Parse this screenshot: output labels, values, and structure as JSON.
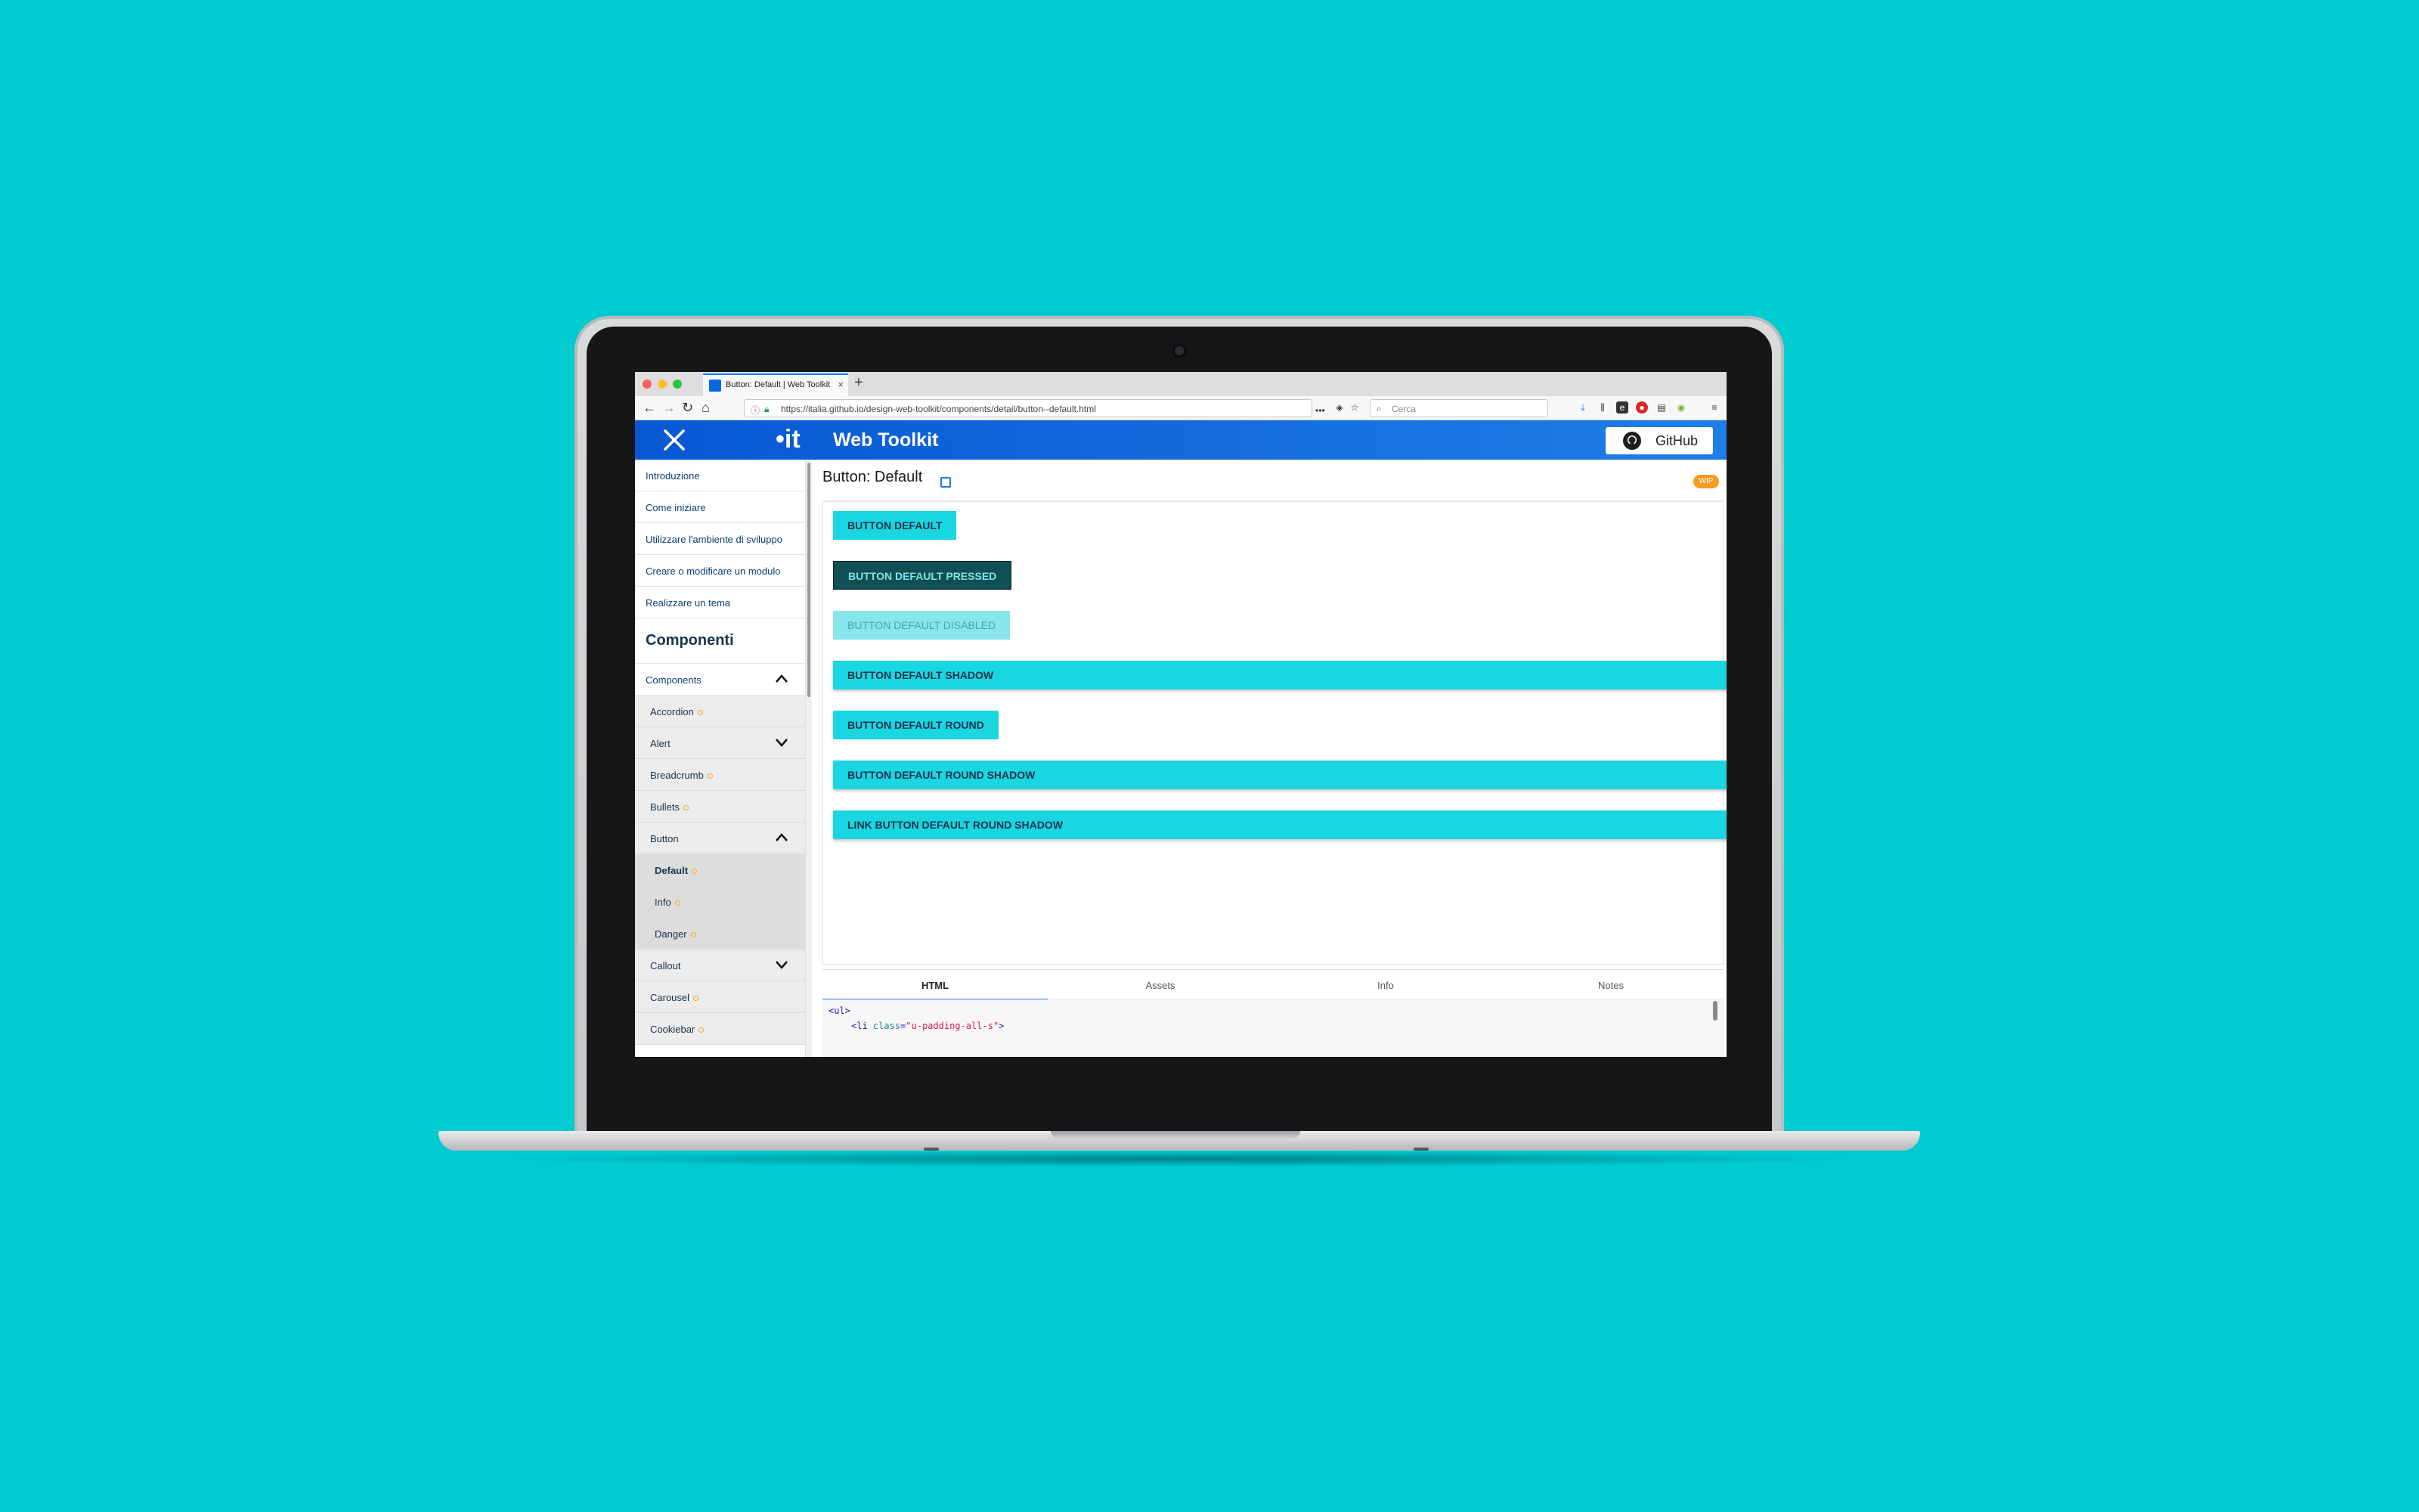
{
  "browser": {
    "tab_title": "Button: Default | Web Toolkit",
    "tab_close": "×",
    "new_tab": "+",
    "url": "https://italia.github.io/design-web-toolkit/components/detail/button--default.html",
    "search_placeholder": "Cerca",
    "nav": {
      "back": "←",
      "forward": "→",
      "reload": "↻",
      "home": "⌂",
      "menu": "≡",
      "more": "•••"
    }
  },
  "header": {
    "logo": "•it",
    "brand": "Web Toolkit",
    "github_label": "GitHub"
  },
  "sidebar": {
    "intro_items": [
      "Introduzione",
      "Come iniziare",
      "Utilizzare l'ambiente di sviluppo",
      "Creare o modificare un modulo",
      "Realizzare un tema"
    ],
    "section_title": "Componenti",
    "group_label": "Components",
    "items": [
      {
        "label": "Accordion"
      },
      {
        "label": "Alert"
      },
      {
        "label": "Breadcrumb"
      },
      {
        "label": "Bullets"
      },
      {
        "label": "Button"
      }
    ],
    "button_children": [
      {
        "label": "Default"
      },
      {
        "label": "Info"
      },
      {
        "label": "Danger"
      }
    ],
    "after_items": [
      {
        "label": "Callout"
      },
      {
        "label": "Carousel"
      },
      {
        "label": "Cookiebar"
      }
    ]
  },
  "main": {
    "title": "Button: Default",
    "wip_badge": "WIP",
    "buttons": [
      "BUTTON DEFAULT",
      "BUTTON DEFAULT PRESSED",
      "BUTTON DEFAULT DISABLED",
      "BUTTON DEFAULT SHADOW",
      "BUTTON DEFAULT ROUND",
      "BUTTON DEFAULT ROUND SHADOW",
      "LINK BUTTON DEFAULT ROUND SHADOW"
    ]
  },
  "panel": {
    "tabs": [
      "HTML",
      "Assets",
      "Info",
      "Notes"
    ],
    "active_tab": "HTML",
    "code": {
      "line1_tag": "<ul>",
      "line2_open": "<li ",
      "line2_attr": "class",
      "line2_eq": "=",
      "line2_val": "\"u-padding-all-s\"",
      "line2_close": ">"
    }
  },
  "colors": {
    "background": "#00cbd1",
    "header_blue": "#0857d4",
    "button_cyan": "#19d6e1",
    "pressed": "#104f55",
    "wip_orange": "#f59a23"
  }
}
